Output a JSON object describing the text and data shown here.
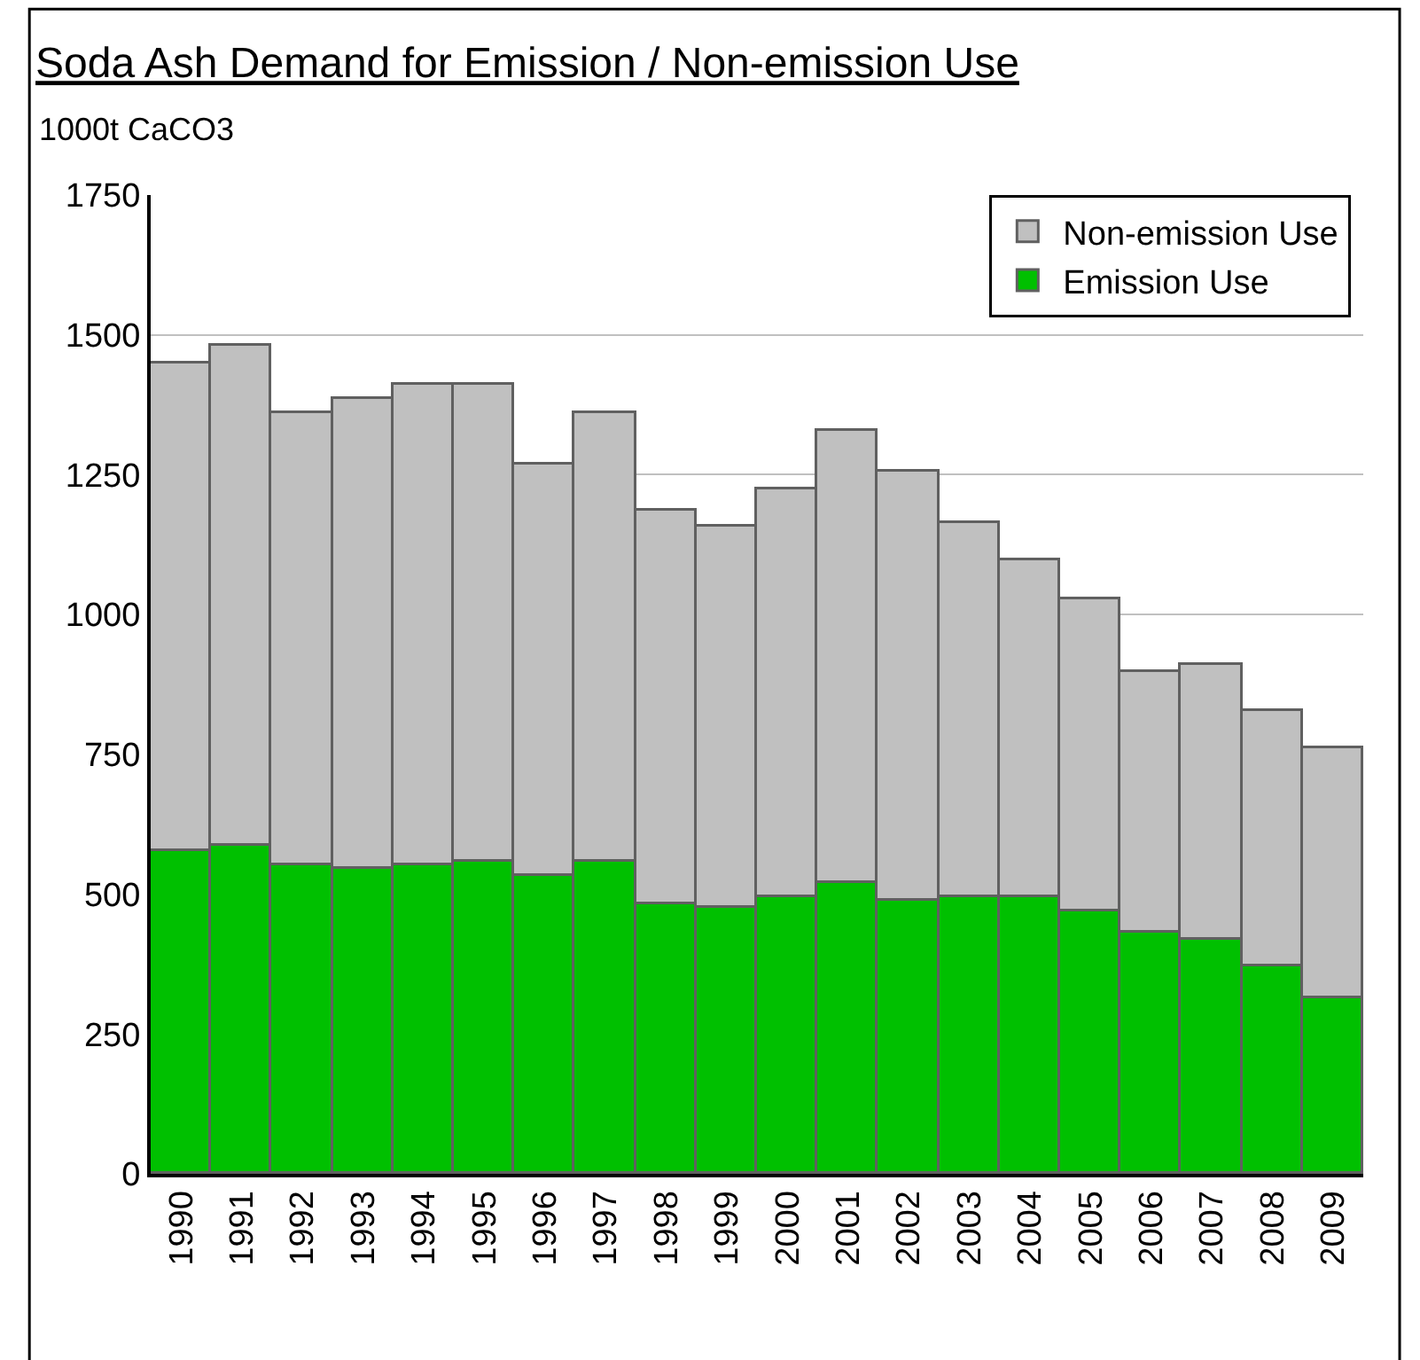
{
  "chart_data": {
    "type": "bar",
    "title": "Soda Ash Demand for Emission / Non-emission Use",
    "ylabel": "1000t CaCO3",
    "categories": [
      "1990",
      "1991",
      "1992",
      "1993",
      "1994",
      "1995",
      "1996",
      "1997",
      "1998",
      "1999",
      "2000",
      "2001",
      "2002",
      "2003",
      "2004",
      "2005",
      "2006",
      "2007",
      "2008",
      "2009"
    ],
    "series": [
      {
        "name": "Emission Use",
        "color": "#00c000",
        "values": [
          578,
          586,
          551,
          546,
          551,
          559,
          532,
          557,
          482,
          475,
          493,
          519,
          488,
          493,
          493,
          468,
          431,
          418,
          372,
          315
        ]
      },
      {
        "name": "Non-emission Use",
        "color": "#c0c0c0",
        "values": [
          872,
          896,
          808,
          839,
          860,
          852,
          737,
          802,
          704,
          681,
          732,
          808,
          769,
          669,
          603,
          558,
          466,
          492,
          456,
          447
        ]
      }
    ],
    "stacked": true,
    "ylim": [
      0,
      1750
    ],
    "yticks": [
      0,
      250,
      500,
      750,
      1000,
      1250,
      1500,
      1750
    ],
    "grid": "y",
    "legend": "top right"
  }
}
